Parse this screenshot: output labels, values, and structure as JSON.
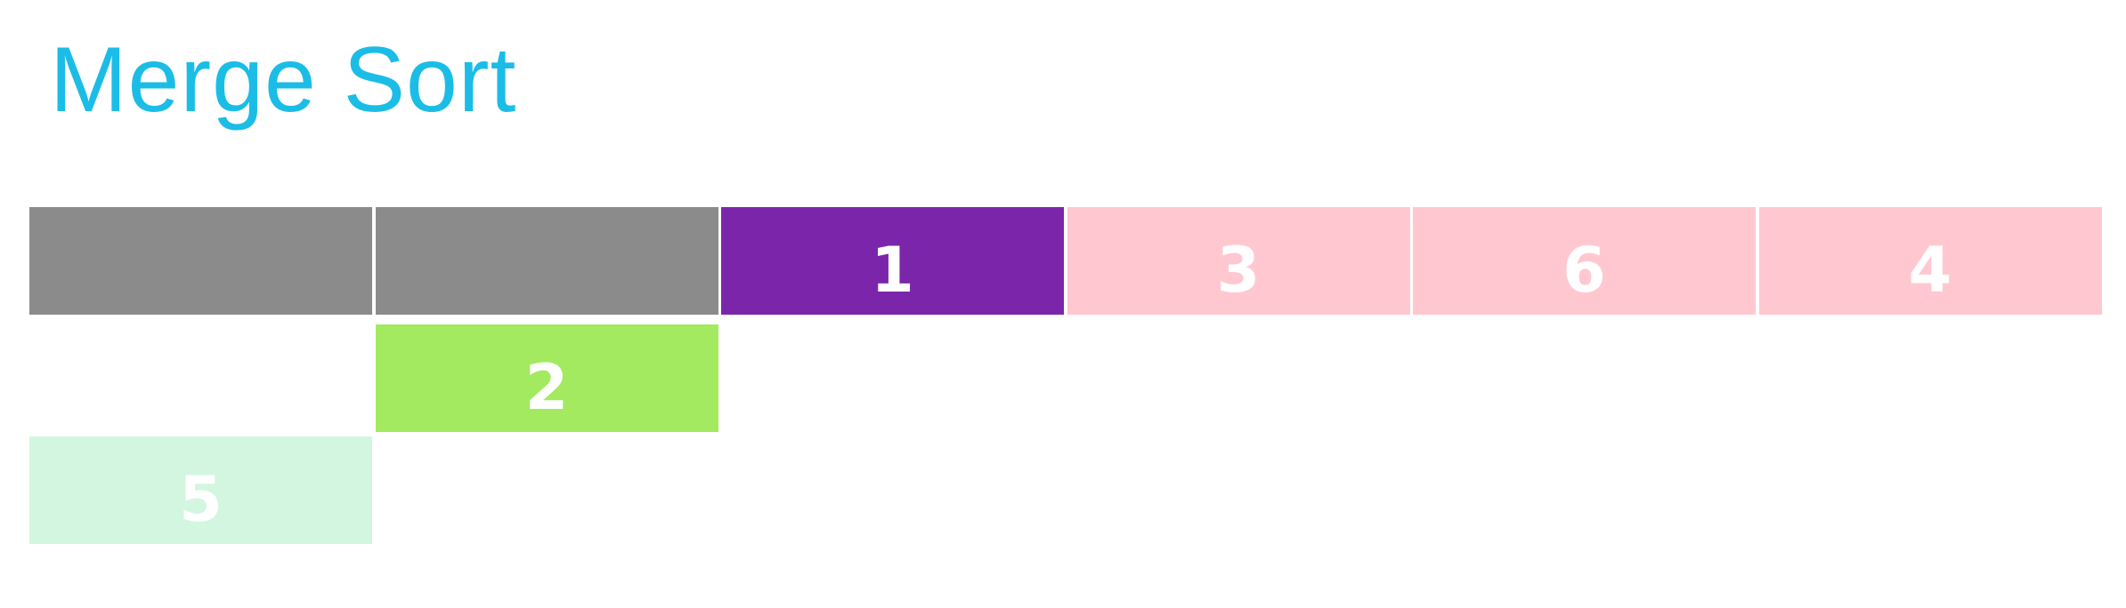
{
  "title": "Merge Sort",
  "cells": [
    {
      "label": "",
      "color": "#8c8b8c",
      "row": 0,
      "col": 0
    },
    {
      "label": "",
      "color": "#8c8b8c",
      "row": 0,
      "col": 1
    },
    {
      "label": "1",
      "color": "#7b26aa",
      "row": 0,
      "col": 2
    },
    {
      "label": "3",
      "color": "#ffc8d1",
      "row": 0,
      "col": 3
    },
    {
      "label": "6",
      "color": "#ffc8d1",
      "row": 0,
      "col": 4
    },
    {
      "label": "4",
      "color": "#ffc8d1",
      "row": 0,
      "col": 5
    },
    {
      "label": "2",
      "color": "#a3ea60",
      "row": 1,
      "col": 1
    },
    {
      "label": "5",
      "color": "#d3f6e1",
      "row": 2,
      "col": 0
    }
  ]
}
